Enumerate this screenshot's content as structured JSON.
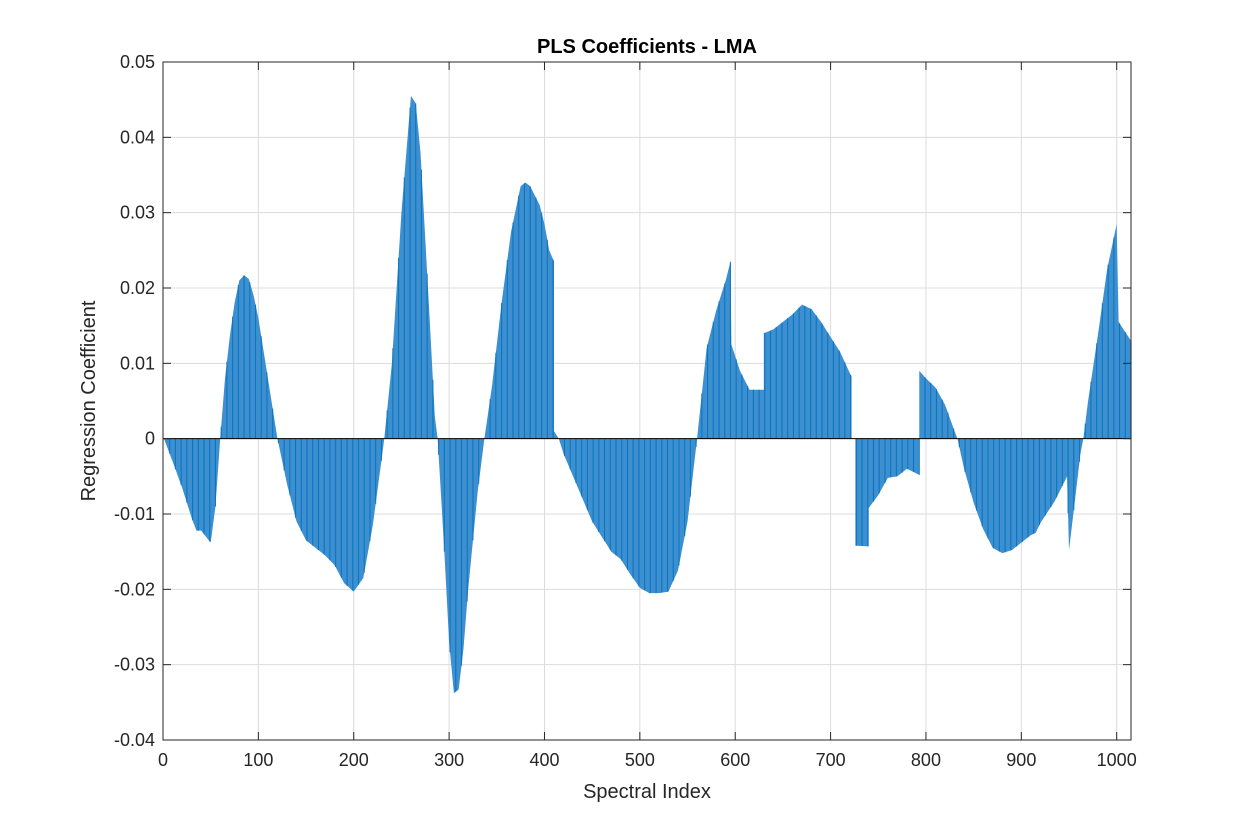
{
  "chart_data": {
    "type": "bar",
    "title": "PLS Coefficients - LMA",
    "xlabel": "Spectral Index",
    "ylabel": "Regression Coefficient",
    "xlim": [
      0,
      1015
    ],
    "ylim": [
      -0.04,
      0.05
    ],
    "xticks": [
      0,
      100,
      200,
      300,
      400,
      500,
      600,
      700,
      800,
      900,
      1000
    ],
    "yticks": [
      -0.04,
      -0.03,
      -0.02,
      -0.01,
      0,
      0.01,
      0.02,
      0.03,
      0.04,
      0.05
    ],
    "ytick_labels": [
      "-0.04",
      "-0.03",
      "-0.02",
      "-0.01",
      "0",
      "0.01",
      "0.02",
      "0.03",
      "0.04",
      "0.05"
    ],
    "grid": true,
    "color": "#0072BD",
    "fill_color": "#3D8FD0",
    "profile": [
      [
        1,
        0
      ],
      [
        10,
        -0.003
      ],
      [
        20,
        -0.0065
      ],
      [
        30,
        -0.0105
      ],
      [
        35,
        -0.0122
      ],
      [
        40,
        -0.0122
      ],
      [
        45,
        -0.013
      ],
      [
        50,
        -0.0138
      ],
      [
        55,
        -0.009
      ],
      [
        60,
        0
      ],
      [
        65,
        0.008
      ],
      [
        70,
        0.0135
      ],
      [
        75,
        0.018
      ],
      [
        80,
        0.021
      ],
      [
        85,
        0.0217
      ],
      [
        90,
        0.0212
      ],
      [
        95,
        0.019
      ],
      [
        100,
        0.016
      ],
      [
        110,
        0.008
      ],
      [
        120,
        0
      ],
      [
        130,
        -0.006
      ],
      [
        140,
        -0.011
      ],
      [
        150,
        -0.0135
      ],
      [
        160,
        -0.0145
      ],
      [
        170,
        -0.0155
      ],
      [
        180,
        -0.0168
      ],
      [
        190,
        -0.0192
      ],
      [
        200,
        -0.0203
      ],
      [
        210,
        -0.0185
      ],
      [
        220,
        -0.0115
      ],
      [
        230,
        -0.002
      ],
      [
        232,
        0
      ],
      [
        240,
        0.01
      ],
      [
        250,
        0.03
      ],
      [
        260,
        0.0455
      ],
      [
        265,
        0.0445
      ],
      [
        270,
        0.038
      ],
      [
        280,
        0.015
      ],
      [
        285,
        0.003
      ],
      [
        288,
        0
      ],
      [
        295,
        -0.015
      ],
      [
        300,
        -0.027
      ],
      [
        305,
        -0.0338
      ],
      [
        310,
        -0.0333
      ],
      [
        315,
        -0.028
      ],
      [
        320,
        -0.02
      ],
      [
        330,
        -0.007
      ],
      [
        337,
        0
      ],
      [
        345,
        0.007
      ],
      [
        355,
        0.018
      ],
      [
        365,
        0.0275
      ],
      [
        375,
        0.0335
      ],
      [
        380,
        0.034
      ],
      [
        385,
        0.0335
      ],
      [
        395,
        0.031
      ],
      [
        400,
        0.0285
      ],
      [
        405,
        0.025
      ],
      [
        410,
        0.0235
      ],
      [
        410,
        0.001
      ],
      [
        415,
        0
      ],
      [
        420,
        -0.002
      ],
      [
        430,
        -0.005
      ],
      [
        440,
        -0.008
      ],
      [
        450,
        -0.011
      ],
      [
        460,
        -0.013
      ],
      [
        470,
        -0.015
      ],
      [
        480,
        -0.016
      ],
      [
        490,
        -0.018
      ],
      [
        500,
        -0.0198
      ],
      [
        510,
        -0.0205
      ],
      [
        520,
        -0.0205
      ],
      [
        530,
        -0.0203
      ],
      [
        540,
        -0.0175
      ],
      [
        550,
        -0.011
      ],
      [
        560,
        0
      ],
      [
        570,
        0.012
      ],
      [
        580,
        0.017
      ],
      [
        590,
        0.021
      ],
      [
        595,
        0.0235
      ],
      [
        596,
        0.0125
      ],
      [
        605,
        0.009
      ],
      [
        615,
        0.0065
      ],
      [
        630,
        0.0065
      ],
      [
        630,
        0.014
      ],
      [
        640,
        0.0145
      ],
      [
        650,
        0.0155
      ],
      [
        660,
        0.0165
      ],
      [
        670,
        0.0178
      ],
      [
        680,
        0.0172
      ],
      [
        690,
        0.0155
      ],
      [
        700,
        0.0135
      ],
      [
        710,
        0.0115
      ],
      [
        722,
        0.0082
      ],
      [
        722,
        0
      ],
      [
        726,
        0
      ],
      [
        726,
        -0.0142
      ],
      [
        740,
        -0.0143
      ],
      [
        740,
        -0.0092
      ],
      [
        750,
        -0.0075
      ],
      [
        760,
        -0.0052
      ],
      [
        770,
        -0.005
      ],
      [
        780,
        -0.004
      ],
      [
        793,
        -0.0048
      ],
      [
        793,
        0.009
      ],
      [
        800,
        0.008
      ],
      [
        810,
        0.0068
      ],
      [
        820,
        0.0045
      ],
      [
        830,
        0.001
      ],
      [
        833,
        0
      ],
      [
        840,
        -0.004
      ],
      [
        850,
        -0.0085
      ],
      [
        860,
        -0.012
      ],
      [
        870,
        -0.0145
      ],
      [
        880,
        -0.0152
      ],
      [
        890,
        -0.0148
      ],
      [
        900,
        -0.0138
      ],
      [
        910,
        -0.0128
      ],
      [
        915,
        -0.0125
      ],
      [
        920,
        -0.0112
      ],
      [
        935,
        -0.0083
      ],
      [
        948,
        -0.005
      ],
      [
        950,
        -0.0148
      ],
      [
        955,
        -0.0095
      ],
      [
        962,
        -0.002
      ],
      [
        965,
        0
      ],
      [
        970,
        0.005
      ],
      [
        980,
        0.0135
      ],
      [
        990,
        0.0225
      ],
      [
        1000,
        0.0285
      ],
      [
        1002,
        0.0155
      ],
      [
        1015,
        0.013
      ]
    ]
  }
}
